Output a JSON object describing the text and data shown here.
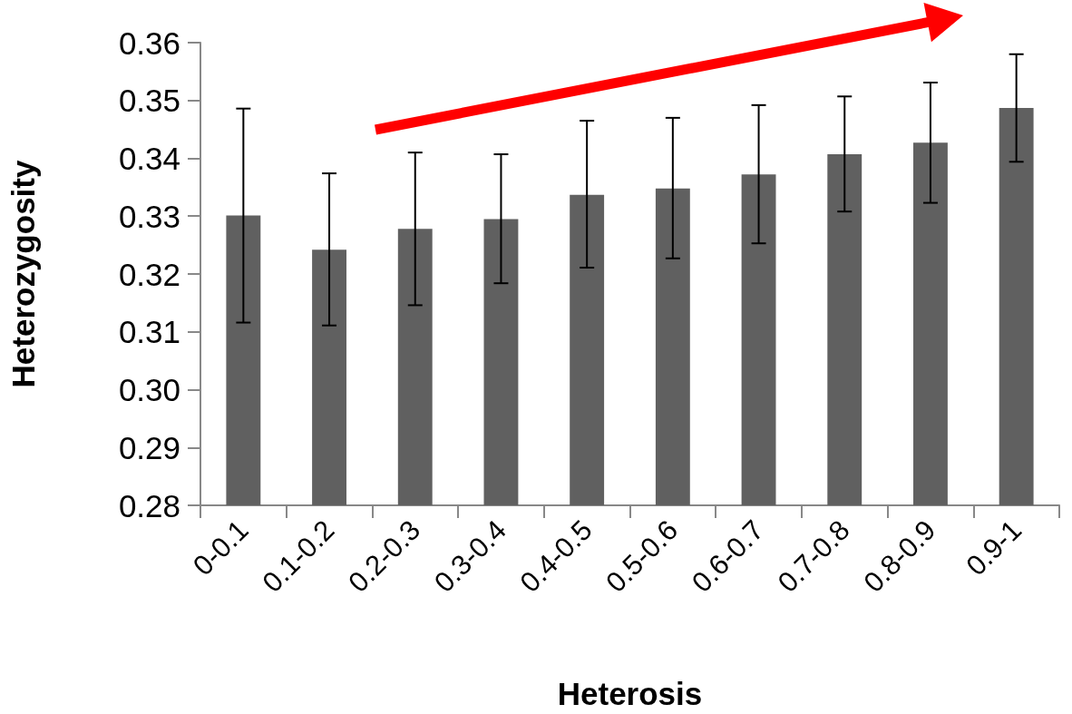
{
  "chart_data": {
    "type": "bar",
    "xlabel": "Heterosis",
    "ylabel": "Heterozygosity",
    "categories": [
      "0-0.1",
      "0.1-0.2",
      "0.2-0.3",
      "0.3-0.4",
      "0.4-0.5",
      "0.5-0.6",
      "0.6-0.7",
      "0.7-0.8",
      "0.8-0.9",
      "0.9-1"
    ],
    "values": [
      0.3301,
      0.3242,
      0.3278,
      0.3295,
      0.3337,
      0.3348,
      0.3372,
      0.3407,
      0.3427,
      0.3487
    ],
    "errors": [
      [
        0.3116,
        0.3486
      ],
      [
        0.3111,
        0.3374
      ],
      [
        0.3146,
        0.341
      ],
      [
        0.3184,
        0.3407
      ],
      [
        0.3211,
        0.3465
      ],
      [
        0.3227,
        0.347
      ],
      [
        0.3253,
        0.3492
      ],
      [
        0.3308,
        0.3507
      ],
      [
        0.3323,
        0.3531
      ],
      [
        0.3394,
        0.358
      ]
    ],
    "color": "#606060",
    "ylim": [
      0.28,
      0.36
    ],
    "yticks": [
      0.28,
      0.29,
      {
        "value": 0.3,
        "label": "0.30"
      },
      0.31,
      0.32,
      0.33,
      0.34,
      0.35,
      0.36
    ],
    "grid": false
  }
}
